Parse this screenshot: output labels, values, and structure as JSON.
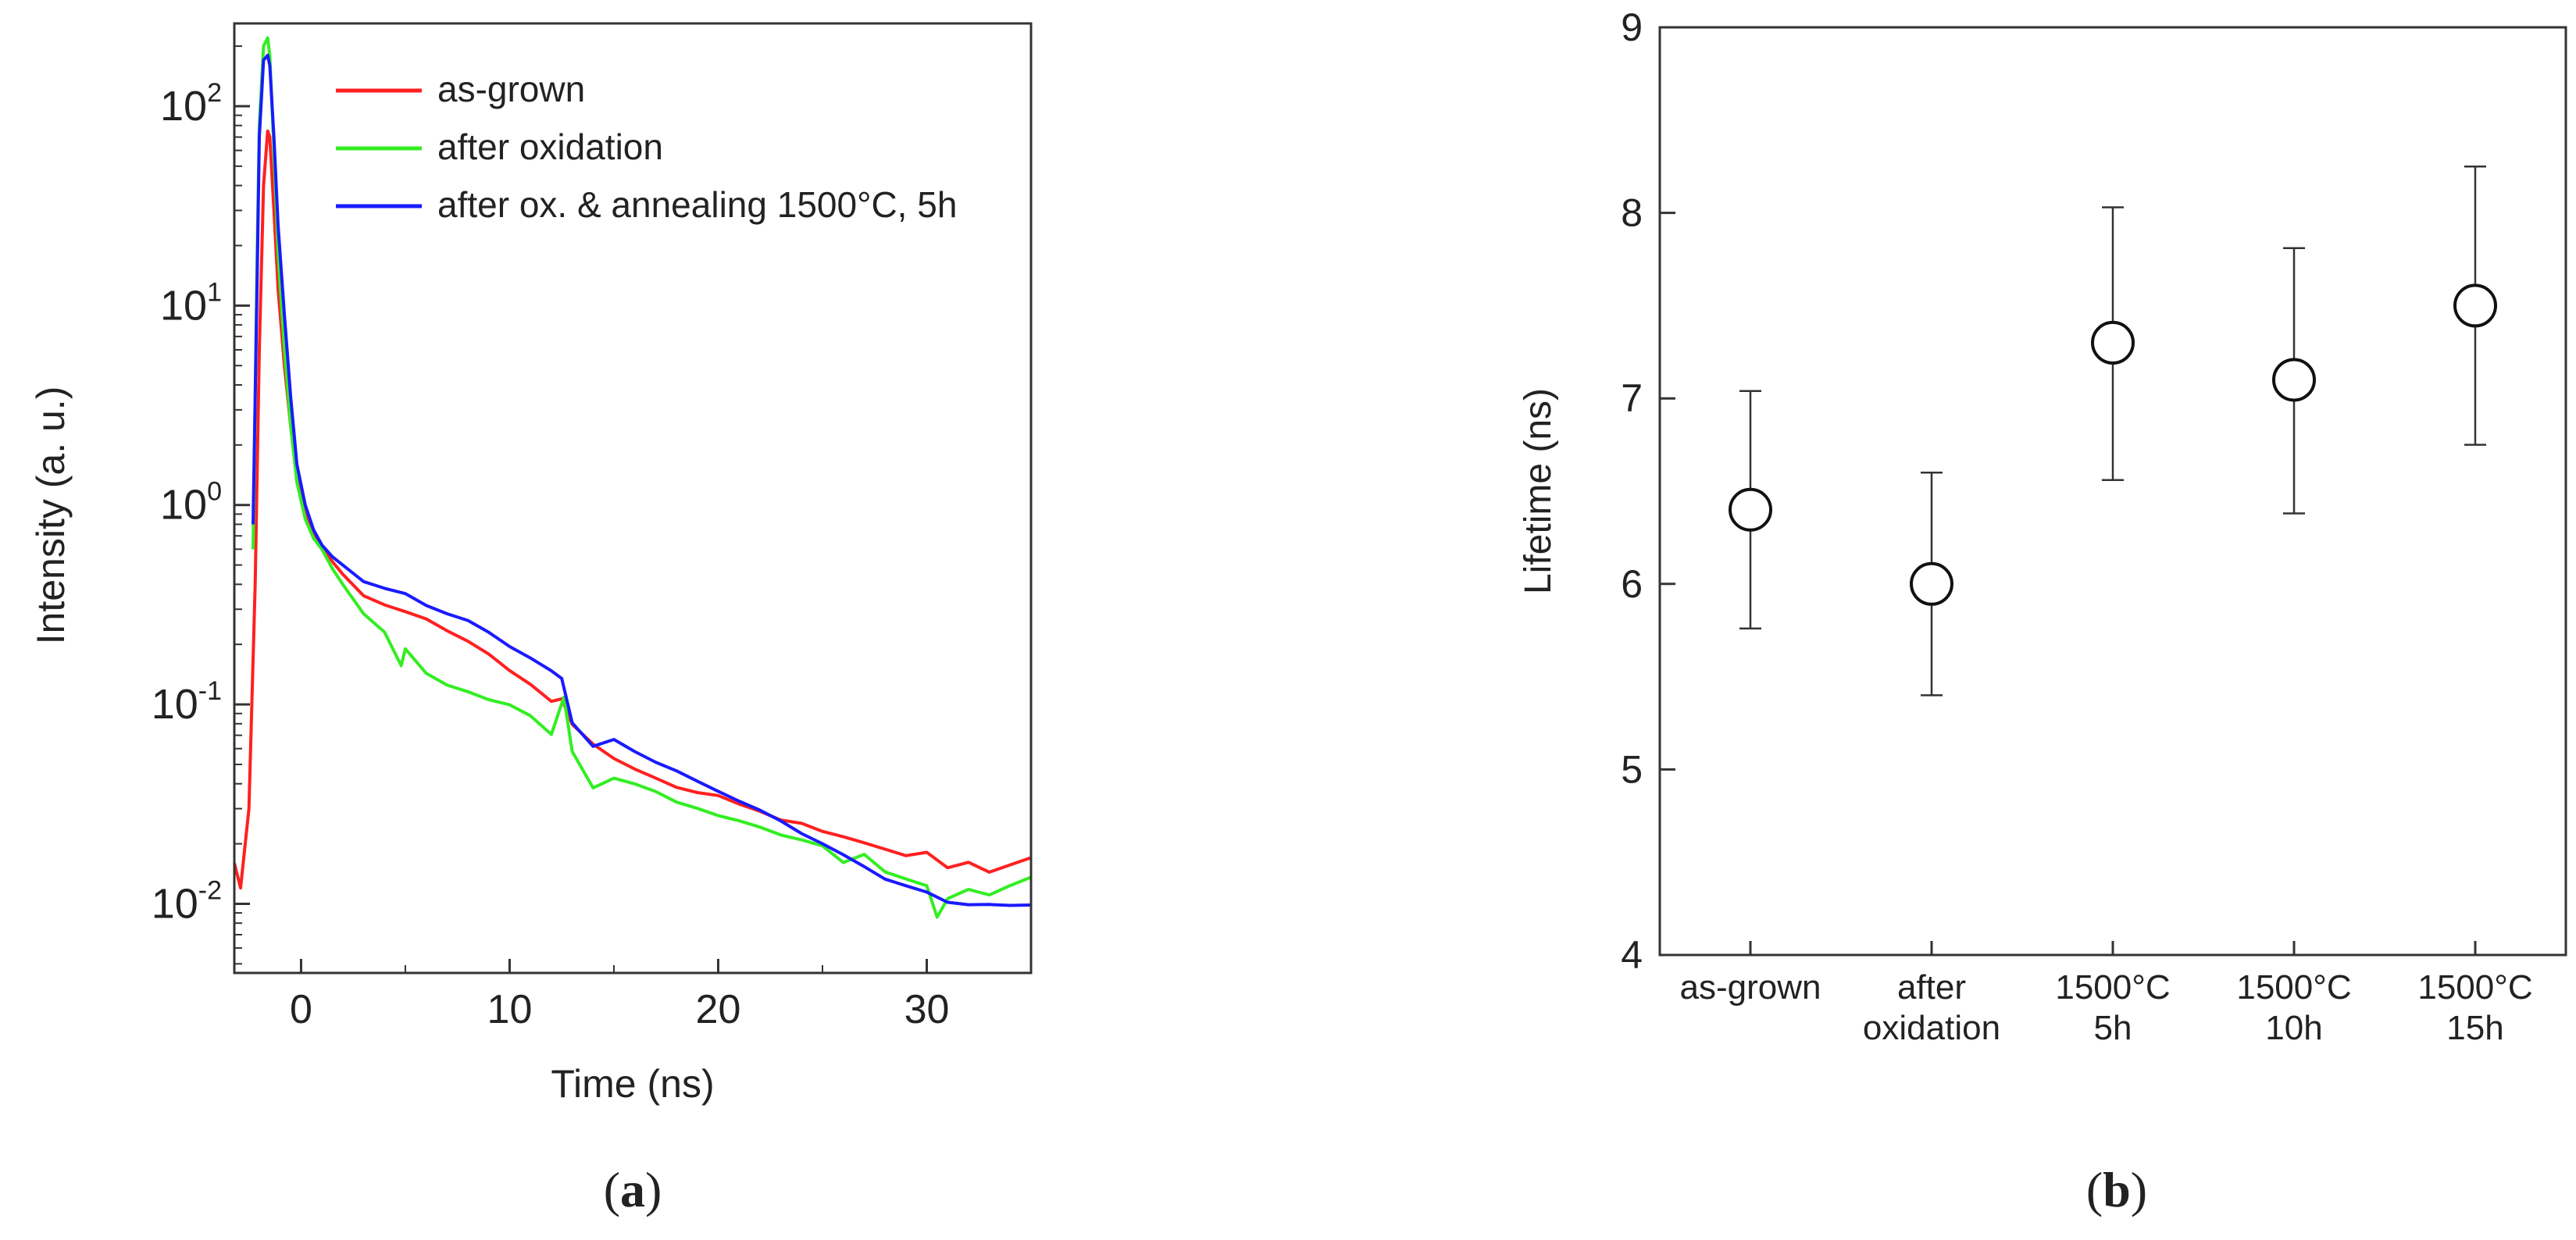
{
  "chart_data": [
    {
      "type": "line",
      "panel_label": {
        "open": "(",
        "letter": "a",
        "close": ")"
      },
      "xlabel": "Time (ns)",
      "ylabel": "Intensity (a. u.)",
      "xlim": [
        -3.2,
        35
      ],
      "ylim": [
        0.0045,
        260
      ],
      "yscale": "log",
      "xticks": [
        0,
        10,
        20,
        30
      ],
      "xtick_labels": [
        "0",
        "10",
        "20",
        "30"
      ],
      "yticks": [
        0.01,
        0.1,
        1,
        10,
        100
      ],
      "ytick_labels": [
        {
          "base": "10",
          "exp": "-2"
        },
        {
          "base": "10",
          "exp": "-1"
        },
        {
          "base": "10",
          "exp": "0"
        },
        {
          "base": "10",
          "exp": "1"
        },
        {
          "base": "10",
          "exp": "2"
        }
      ],
      "legend_position": "top-right",
      "series": [
        {
          "name": "as-grown",
          "color": "#ff2020",
          "x": [
            -3.2,
            -2.9,
            -2.5,
            -2.2,
            -2.0,
            -1.8,
            -1.6,
            -1.5,
            -1.3,
            -1.1,
            -0.8,
            -0.5,
            -0.2,
            0.2,
            0.6,
            1.0,
            1.5,
            2.0,
            3.0,
            4.0,
            5.0,
            6.0,
            7.0,
            8.0,
            9.0,
            10.0,
            11.0,
            12.0,
            12.5,
            13.0,
            14.0,
            15.0,
            16.0,
            17.0,
            18.0,
            19.0,
            20.0,
            21.0,
            22.0,
            23.0,
            24.0,
            25.0,
            26.0,
            27.0,
            28.0,
            29.0,
            30.0,
            31.0,
            32.0,
            33.0,
            34.0,
            35.0
          ],
          "y": [
            0.016,
            0.012,
            0.03,
            0.4,
            6,
            40,
            75,
            70,
            30,
            12,
            5,
            2.5,
            1.4,
            0.9,
            0.7,
            0.62,
            0.52,
            0.45,
            0.37,
            0.33,
            0.3,
            0.27,
            0.23,
            0.2,
            0.17,
            0.14,
            0.12,
            0.1,
            0.105,
            0.08,
            0.065,
            0.056,
            0.05,
            0.045,
            0.04,
            0.037,
            0.035,
            0.031,
            0.028,
            0.025,
            0.024,
            0.022,
            0.021,
            0.02,
            0.019,
            0.018,
            0.019,
            0.016,
            0.017,
            0.015,
            0.016,
            0.017
          ]
        },
        {
          "name": "after oxidation",
          "color": "#33ee22",
          "x": [
            -2.3,
            -2.1,
            -2.0,
            -1.8,
            -1.6,
            -1.5,
            -1.3,
            -1.1,
            -0.8,
            -0.5,
            -0.2,
            0.2,
            0.6,
            1.0,
            1.5,
            2.0,
            3.0,
            4.0,
            4.8,
            5.0,
            6.0,
            7.0,
            8.0,
            9.0,
            10.0,
            11.0,
            12.0,
            12.6,
            13.0,
            14.0,
            15.0,
            16.0,
            17.0,
            18.0,
            19.0,
            20.0,
            21.0,
            22.0,
            23.0,
            24.0,
            25.0,
            26.0,
            27.0,
            28.0,
            29.0,
            30.0,
            30.5,
            31.0,
            32.0,
            33.0,
            34.0,
            35.0
          ],
          "y": [
            0.6,
            20,
            80,
            200,
            220,
            180,
            60,
            18,
            6,
            2.5,
            1.3,
            0.85,
            0.68,
            0.6,
            0.48,
            0.4,
            0.3,
            0.24,
            0.16,
            0.19,
            0.14,
            0.12,
            0.11,
            0.1,
            0.095,
            0.085,
            0.07,
            0.11,
            0.06,
            0.04,
            0.045,
            0.042,
            0.038,
            0.033,
            0.03,
            0.027,
            0.025,
            0.023,
            0.021,
            0.02,
            0.019,
            0.016,
            0.018,
            0.015,
            0.014,
            0.013,
            0.009,
            0.011,
            0.012,
            0.011,
            0.012,
            0.013
          ]
        },
        {
          "name": "after ox. & annealing 1500°C, 5h",
          "color": "#1a1aff",
          "x": [
            -2.3,
            -2.1,
            -2.0,
            -1.8,
            -1.6,
            -1.5,
            -1.3,
            -1.1,
            -0.8,
            -0.5,
            -0.2,
            0.2,
            0.6,
            1.0,
            1.5,
            2.0,
            3.0,
            4.0,
            5.0,
            6.0,
            7.0,
            8.0,
            9.0,
            10.0,
            11.0,
            12.0,
            12.5,
            13.0,
            14.0,
            15.0,
            16.0,
            17.0,
            18.0,
            19.0,
            20.0,
            21.0,
            22.0,
            23.0,
            24.0,
            25.0,
            26.0,
            27.0,
            28.0,
            29.0,
            30.0,
            31.0,
            32.0,
            33.0,
            34.0,
            35.0
          ],
          "y": [
            0.8,
            15,
            70,
            170,
            180,
            160,
            70,
            25,
            9,
            3.5,
            1.6,
            1.0,
            0.75,
            0.63,
            0.55,
            0.5,
            0.42,
            0.38,
            0.35,
            0.3,
            0.27,
            0.25,
            0.22,
            0.19,
            0.17,
            0.15,
            0.14,
            0.085,
            0.065,
            0.07,
            0.06,
            0.052,
            0.046,
            0.04,
            0.035,
            0.031,
            0.028,
            0.025,
            0.022,
            0.02,
            0.018,
            0.016,
            0.014,
            0.013,
            0.012,
            0.0105,
            0.01,
            0.0098,
            0.0095,
            0.0094
          ]
        }
      ]
    },
    {
      "type": "scatter",
      "panel_label": {
        "open": "(",
        "letter": "b",
        "close": ")"
      },
      "ylabel": "Lifetime (ns)",
      "ylim": [
        4,
        9
      ],
      "yticks": [
        4,
        5,
        6,
        7,
        8,
        9
      ],
      "ytick_labels": [
        "4",
        "5",
        "6",
        "7",
        "8",
        "9"
      ],
      "categories": [
        [
          "as-grown"
        ],
        [
          "after",
          "oxidation"
        ],
        [
          "1500°C",
          "5h"
        ],
        [
          "1500°C",
          "10h"
        ],
        [
          "1500°C",
          "15h"
        ]
      ],
      "values": [
        6.4,
        6.0,
        7.3,
        7.1,
        7.5
      ],
      "error_low": [
        5.76,
        5.4,
        6.56,
        6.38,
        6.75
      ],
      "error_high": [
        7.04,
        6.6,
        8.03,
        7.81,
        8.25
      ],
      "marker": "open-circle",
      "grid": false
    }
  ]
}
